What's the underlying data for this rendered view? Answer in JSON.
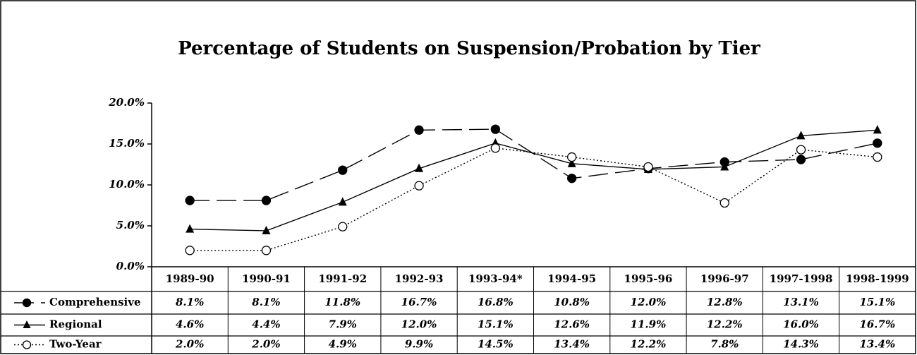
{
  "chart_data": {
    "type": "line",
    "title": "Percentage of Students on Suspension/Probation by Tier",
    "categories": [
      "1989-90",
      "1990-91",
      "1991-92",
      "1992-93",
      "1993-94*",
      "1994-95",
      "1995-96",
      "1996-97",
      "1997-1998",
      "1998-1999"
    ],
    "series": [
      {
        "name": "Comprehensive",
        "color": "#000000",
        "marker": "filled-circle",
        "line_style": "dashed",
        "values": [
          8.1,
          8.1,
          11.8,
          16.7,
          16.8,
          10.8,
          12.0,
          12.8,
          13.1,
          15.1
        ],
        "value_labels": [
          "8.1%",
          "8.1%",
          "11.8%",
          "16.7%",
          "16.8%",
          "10.8%",
          "12.0%",
          "12.8%",
          "13.1%",
          "15.1%"
        ]
      },
      {
        "name": "Regional",
        "color": "#000000",
        "marker": "filled-triangle",
        "line_style": "solid",
        "values": [
          4.6,
          4.4,
          7.9,
          12.0,
          15.1,
          12.6,
          11.9,
          12.2,
          16.0,
          16.7
        ],
        "value_labels": [
          "4.6%",
          "4.4%",
          "7.9%",
          "12.0%",
          "15.1%",
          "12.6%",
          "11.9%",
          "12.2%",
          "16.0%",
          "16.7%"
        ]
      },
      {
        "name": "Two-Year",
        "color": "#000000",
        "marker": "open-circle",
        "line_style": "dotted",
        "values": [
          2.0,
          2.0,
          4.9,
          9.9,
          14.5,
          13.4,
          12.2,
          7.8,
          14.3,
          13.4
        ],
        "value_labels": [
          "2.0%",
          "2.0%",
          "4.9%",
          "9.9%",
          "14.5%",
          "13.4%",
          "12.2%",
          "7.8%",
          "14.3%",
          "13.4%"
        ]
      }
    ],
    "ylim": [
      0,
      20
    ],
    "yticks": [
      {
        "value": 0,
        "label": "0.0%"
      },
      {
        "value": 5,
        "label": "5.0%"
      },
      {
        "value": 10,
        "label": "10.0%"
      },
      {
        "value": 15,
        "label": "15.0%"
      },
      {
        "value": 20,
        "label": "20.0%"
      }
    ],
    "grid": false
  }
}
